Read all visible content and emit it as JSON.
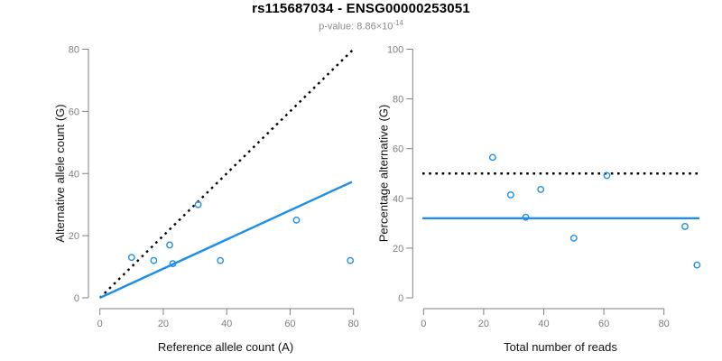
{
  "header": {
    "title": "rs115687034 - ENSG00000253051",
    "pvalue_prefix": "p-value: ",
    "pvalue_mantissa": "8.86×10",
    "pvalue_exponent": "-14"
  },
  "colors": {
    "accent_blue": "#1E8FE8",
    "dashed_black": "#000000",
    "axis_gray": "#808080",
    "tick_text_gray": "#7f7f7f",
    "subtitle_gray": "#8c8c8c",
    "title_black": "#000000"
  },
  "chart_data": [
    {
      "type": "scatter",
      "name": "allele-counts",
      "xlabel": "Reference allele count (A)",
      "ylabel": "Alternative allele count (G)",
      "xlim": [
        0,
        80
      ],
      "ylim": [
        0,
        80
      ],
      "xticks": [
        0,
        20,
        40,
        60,
        80
      ],
      "yticks": [
        0,
        20,
        40,
        60,
        80
      ],
      "grid": false,
      "legend": null,
      "points": [
        [
          10,
          13
        ],
        [
          17,
          12
        ],
        [
          22,
          17
        ],
        [
          23,
          11
        ],
        [
          31,
          30
        ],
        [
          38,
          12
        ],
        [
          62,
          25
        ],
        [
          79,
          12
        ]
      ],
      "lines": [
        {
          "name": "identity-line",
          "style": "dashed",
          "color": "#000000",
          "x1": 0,
          "y1": 0,
          "x2": 80,
          "y2": 80
        },
        {
          "name": "fit-line",
          "style": "solid",
          "color": "#1E8FE8",
          "x1": 0,
          "y1": 0,
          "x2": 79.5,
          "y2": 37.3
        }
      ]
    },
    {
      "type": "scatter",
      "name": "percentage-alternative",
      "xlabel": "Total number of reads",
      "ylabel": "Percentage alternative (G)",
      "xlim": [
        0,
        80
      ],
      "ylim": [
        0,
        100
      ],
      "xticks": [
        0,
        20,
        40,
        60,
        80
      ],
      "yticks": [
        0,
        20,
        40,
        60,
        80,
        100
      ],
      "grid": false,
      "legend": null,
      "points": [
        [
          23,
          56.5
        ],
        [
          29,
          41.4
        ],
        [
          34,
          32.4
        ],
        [
          39,
          43.6
        ],
        [
          50,
          24.0
        ],
        [
          61,
          49.2
        ],
        [
          87,
          28.7
        ],
        [
          91,
          13.2
        ]
      ],
      "lines": [
        {
          "name": "fifty-percent-line",
          "style": "dashed",
          "color": "#000000",
          "h": 50
        },
        {
          "name": "mean-percentage-line",
          "style": "solid",
          "color": "#1E8FE8",
          "h": 32
        }
      ]
    }
  ]
}
